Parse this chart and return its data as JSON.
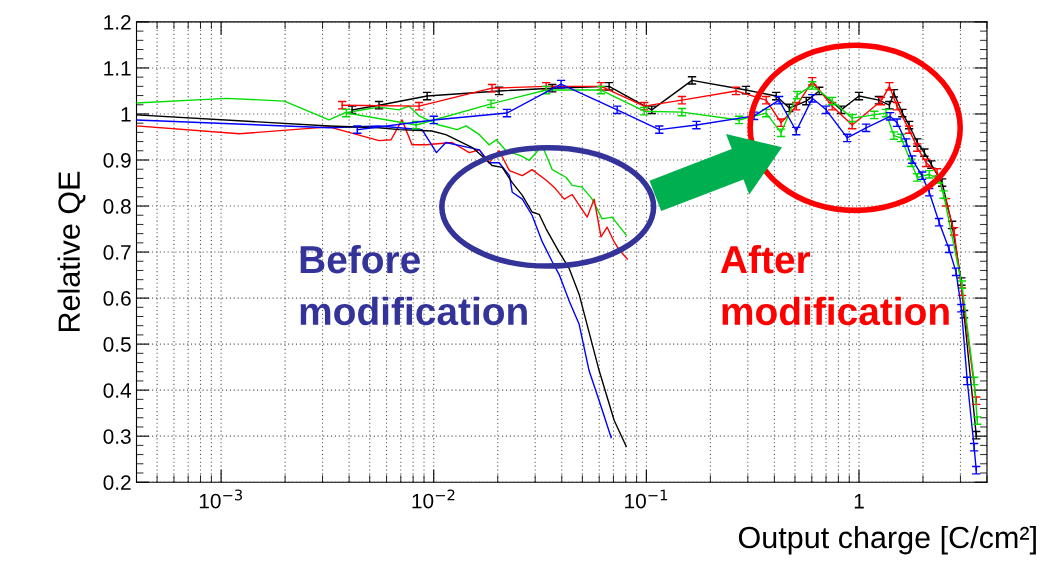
{
  "chart_data": {
    "type": "line",
    "xlabel": "Output charge [C/cm²]",
    "ylabel": "Relative QE",
    "log": "x",
    "grid": true,
    "marker": "none",
    "line_style": "solid",
    "xlim": [
      0.0004,
      4
    ],
    "xticks": [
      {
        "value": 0.001,
        "label": "10$^{−3}$"
      },
      {
        "value": 0.01,
        "label": "10$^{−2}$"
      },
      {
        "value": 0.1,
        "label": "10$^{−1}$"
      },
      1
    ],
    "ylim": [
      0.2,
      1.2
    ],
    "yticks": [
      0.2,
      0.3,
      0.4,
      0.5,
      0.6,
      0.7,
      0.8,
      0.9,
      1,
      1.1,
      1.2
    ],
    "annotations": [
      "Before modification",
      "After modification"
    ],
    "series": [
      {
        "color": "#00dd00",
        "x": [
          0.0004,
          0.00106,
          0.00198,
          0.00322,
          0.00379,
          0.00553,
          0.00687,
          0.00766,
          0.00853,
          0.0106,
          0.0129,
          0.0142,
          0.0164,
          0.0182,
          0.0197,
          0.0219,
          0.0258,
          0.0281,
          0.0324,
          0.0361,
          0.042,
          0.0448,
          0.0499,
          0.0556,
          0.0619,
          0.069,
          0.0804
        ],
        "values": [
          1.024,
          1.034,
          1.028,
          0.987,
          1.002,
          1.015,
          1.009,
          1.017,
          0.996,
          0.976,
          0.966,
          0.974,
          0.955,
          0.933,
          0.944,
          0.92,
          0.909,
          0.899,
          0.931,
          0.879,
          0.862,
          0.845,
          0.841,
          0.815,
          0.772,
          0.776,
          0.737
        ]
      },
      {
        "color": "#ff0000",
        "x": [
          0.0004,
          0.00122,
          0.00322,
          0.00553,
          0.0063,
          0.0071,
          0.0079,
          0.0092,
          0.0122,
          0.0147,
          0.0164,
          0.0182,
          0.0203,
          0.0227,
          0.0261,
          0.029,
          0.0338,
          0.0368,
          0.0411,
          0.0448,
          0.0483,
          0.0527,
          0.0568,
          0.0612,
          0.0654,
          0.0706,
          0.0745,
          0.0813
        ],
        "values": [
          0.974,
          0.957,
          0.972,
          0.942,
          0.944,
          0.987,
          0.933,
          0.933,
          0.938,
          0.916,
          0.922,
          0.894,
          0.92,
          0.877,
          0.866,
          0.879,
          0.856,
          0.841,
          0.815,
          0.825,
          0.802,
          0.776,
          0.815,
          0.733,
          0.754,
          0.722,
          0.705,
          0.685
        ]
      },
      {
        "color": "#0000ff",
        "x": [
          0.0004,
          0.00322,
          0.00553,
          0.00687,
          0.00881,
          0.0103,
          0.0114,
          0.0147,
          0.0164,
          0.0182,
          0.0203,
          0.0227,
          0.0234,
          0.0261,
          0.029,
          0.0324,
          0.0361,
          0.0389,
          0.0434,
          0.0483,
          0.0538,
          0.06,
          0.0683
        ],
        "values": [
          0.987,
          0.97,
          0.974,
          0.97,
          0.966,
          0.916,
          0.938,
          0.927,
          0.922,
          0.894,
          0.894,
          0.866,
          0.83,
          0.815,
          0.78,
          0.722,
          0.679,
          0.651,
          0.593,
          0.543,
          0.442,
          0.377,
          0.297
        ]
      },
      {
        "color": "#000000",
        "x": [
          0.0004,
          0.00322,
          0.00553,
          0.00687,
          0.0098,
          0.0114,
          0.0152,
          0.0176,
          0.0188,
          0.021,
          0.0234,
          0.0261,
          0.029,
          0.0313,
          0.0338,
          0.0389,
          0.0434,
          0.0483,
          0.0521,
          0.06,
          0.0706,
          0.0804
        ],
        "values": [
          0.998,
          0.974,
          0.97,
          0.966,
          0.963,
          0.955,
          0.927,
          0.901,
          0.888,
          0.884,
          0.851,
          0.823,
          0.787,
          0.782,
          0.75,
          0.7,
          0.664,
          0.608,
          0.55,
          0.442,
          0.334,
          0.278
        ]
      },
      {
        "color": "#000000",
        "x": [
          0.00413,
          0.00553,
          0.00931,
          0.0203,
          0.0361,
          0.0668,
          0.106,
          0.164,
          0.294,
          0.408,
          0.47,
          0.565,
          0.65,
          0.824,
          1.0,
          1.24,
          1.39,
          1.46,
          1.6,
          1.72,
          1.88,
          2.03,
          2.19,
          2.46,
          2.74,
          3.03,
          3.12,
          3.56
        ],
        "values": [
          1.009,
          1.019,
          1.039,
          1.05,
          1.056,
          1.06,
          1.009,
          1.073,
          1.052,
          1.039,
          1.013,
          1.028,
          1.05,
          1.009,
          1.039,
          1.03,
          1.019,
          1.045,
          1.002,
          0.976,
          0.938,
          0.916,
          0.89,
          0.851,
          0.759,
          0.636,
          0.565,
          0.302
        ],
        "errors": [
          0.008,
          0.008,
          0.008,
          0.008,
          0.008,
          0.008,
          0.008,
          0.008,
          0.008,
          0.008,
          0.008,
          0.008,
          0.008,
          0.008,
          0.008,
          0.008,
          0.008,
          0.008,
          0.008,
          0.008,
          0.008,
          0.008,
          0.008,
          0.008,
          0.008,
          0.008,
          0.008,
          0.008
        ]
      },
      {
        "color": "#ff0000",
        "x": [
          0.00371,
          0.00853,
          0.0188,
          0.0338,
          0.0612,
          0.0977,
          0.147,
          0.264,
          0.366,
          0.43,
          0.507,
          0.603,
          0.748,
          0.929,
          1.27,
          1.39,
          1.51,
          1.72,
          1.88,
          2.07,
          2.33,
          2.57,
          2.8,
          3.05,
          3.56
        ],
        "values": [
          1.019,
          1.017,
          1.056,
          1.06,
          1.06,
          1.017,
          1.03,
          1.05,
          1.03,
          0.981,
          1.017,
          1.071,
          1.017,
          0.976,
          1.028,
          1.06,
          1.017,
          0.966,
          0.927,
          0.894,
          0.873,
          0.808,
          0.745,
          0.614,
          0.377
        ],
        "errors": [
          0.008,
          0.008,
          0.008,
          0.008,
          0.008,
          0.008,
          0.008,
          0.008,
          0.008,
          0.008,
          0.008,
          0.008,
          0.008,
          0.008,
          0.008,
          0.008,
          0.008,
          0.008,
          0.008,
          0.008,
          0.008,
          0.008,
          0.008,
          0.008,
          0.008
        ]
      },
      {
        "color": "#00dd00",
        "x": [
          0.00388,
          0.00826,
          0.0186,
          0.0338,
          0.0612,
          0.0977,
          0.147,
          0.273,
          0.366,
          0.43,
          0.512,
          0.603,
          0.748,
          0.929,
          1.18,
          1.34,
          1.46,
          1.58,
          1.76,
          1.88,
          2.14,
          2.38,
          2.5,
          3.05,
          3.48,
          3.6
        ],
        "values": [
          1.002,
          0.976,
          1.022,
          1.052,
          1.052,
          1.006,
          1.004,
          0.987,
          1.002,
          0.959,
          1.041,
          1.062,
          1.028,
          0.991,
          0.998,
          1.002,
          0.953,
          0.948,
          0.894,
          0.862,
          0.869,
          0.858,
          0.825,
          0.629,
          0.42,
          0.334
        ],
        "errors": [
          0.008,
          0.008,
          0.008,
          0.008,
          0.008,
          0.008,
          0.008,
          0.008,
          0.008,
          0.008,
          0.008,
          0.008,
          0.008,
          0.008,
          0.008,
          0.008,
          0.008,
          0.008,
          0.008,
          0.008,
          0.008,
          0.008,
          0.008,
          0.008,
          0.008,
          0.008
        ]
      },
      {
        "color": "#0000ff",
        "x": [
          0.00437,
          0.01,
          0.0221,
          0.0397,
          0.0729,
          0.115,
          0.172,
          0.321,
          0.421,
          0.507,
          0.603,
          0.701,
          0.88,
          1.08,
          1.4,
          1.51,
          1.67,
          1.78,
          1.98,
          2.14,
          2.38,
          2.65,
          2.86,
          3.03,
          3.23,
          3.48,
          3.56
        ],
        "values": [
          0.966,
          0.987,
          1.002,
          1.065,
          1.009,
          0.966,
          0.976,
          0.996,
          1.03,
          0.963,
          1.034,
          1.009,
          0.948,
          0.97,
          0.995,
          0.981,
          0.938,
          0.901,
          0.866,
          0.83,
          0.765,
          0.707,
          0.657,
          0.578,
          0.42,
          0.276,
          0.226
        ],
        "errors": [
          0.008,
          0.008,
          0.008,
          0.008,
          0.008,
          0.008,
          0.008,
          0.008,
          0.008,
          0.008,
          0.008,
          0.008,
          0.008,
          0.008,
          0.008,
          0.008,
          0.008,
          0.008,
          0.008,
          0.008,
          0.008,
          0.008,
          0.008,
          0.008,
          0.008,
          0.008,
          0.008
        ]
      }
    ]
  }
}
